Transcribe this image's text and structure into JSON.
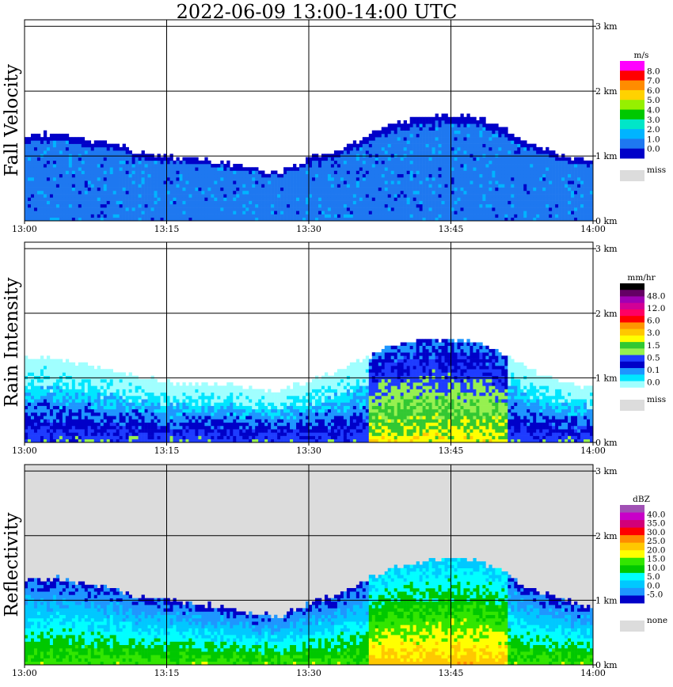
{
  "title": "2022-06-09   13:00-14:00 UTC",
  "colors": {
    "missing": "#dcdcdc",
    "fall_velocity": [
      "#0000c8",
      "#1e78f0",
      "#00b4ff",
      "#00e6c8",
      "#00c800",
      "#96f000",
      "#ffd200",
      "#ff8c00",
      "#ff0000",
      "#ff00ff"
    ],
    "rain_intensity": [
      "#ffffff",
      "#a0ffff",
      "#00e6ff",
      "#1e96ff",
      "#0000c8",
      "#1e3cff",
      "#96f050",
      "#32c832",
      "#ffff00",
      "#ffc800",
      "#ff9600",
      "#ff0000",
      "#ff0064",
      "#d20096",
      "#a000b4",
      "#640064",
      "#000000"
    ],
    "reflectivity": [
      "#0000c8",
      "#1e96ff",
      "#00c8ff",
      "#00ffff",
      "#00c800",
      "#32e600",
      "#ffff00",
      "#ffc800",
      "#ff8c00",
      "#ff0000",
      "#d20078",
      "#c800c8",
      "#a050b4"
    ]
  },
  "chart_data": [
    {
      "type": "heatmap",
      "ylabel": "Fall Velocity",
      "x_ticks": [
        "13:00",
        "13:15",
        "13:30",
        "13:45",
        "14:00"
      ],
      "y_ticks": [
        "0 km",
        "1 km",
        "2 km",
        "3 km"
      ],
      "xlim": [
        "13:00",
        "14:00"
      ],
      "ylim": [
        0,
        3.1
      ],
      "grid": true,
      "legend": {
        "unit": "m/s",
        "levels": [
          "0.0",
          "1.0",
          "2.0",
          "3.0",
          "4.0",
          "5.0",
          "6.0",
          "7.0",
          "8.0"
        ],
        "missing_label": "miss"
      },
      "cloud_top_km": [
        1.3,
        1.35,
        1.25,
        1.2,
        1.05,
        1.0,
        0.95,
        0.9,
        0.8,
        0.75,
        0.95,
        1.1,
        1.3,
        1.5,
        1.6,
        1.65,
        1.6,
        1.4,
        1.15,
        1.0,
        0.9
      ]
    },
    {
      "type": "heatmap",
      "ylabel": "Rain Intensity",
      "x_ticks": [
        "13:00",
        "13:15",
        "13:30",
        "13:45",
        "14:00"
      ],
      "y_ticks": [
        "0 km",
        "1 km",
        "2 km",
        "3 km"
      ],
      "xlim": [
        "13:00",
        "14:00"
      ],
      "ylim": [
        0,
        3.1
      ],
      "grid": true,
      "legend": {
        "unit": "mm/hr",
        "levels": [
          "0.0",
          "0.1",
          "0.5",
          "1.5",
          "3.0",
          "6.0",
          "12.0",
          "48.0"
        ],
        "missing_label": "miss"
      },
      "cloud_top_km": [
        1.3,
        1.3,
        1.2,
        1.1,
        1.0,
        0.95,
        0.9,
        0.9,
        0.85,
        0.8,
        0.95,
        1.1,
        1.3,
        1.5,
        1.6,
        1.6,
        1.55,
        1.35,
        1.1,
        0.95,
        0.85
      ]
    },
    {
      "type": "heatmap",
      "ylabel": "Reflectivity",
      "x_ticks": [
        "13:00",
        "13:15",
        "13:30",
        "13:45",
        "14:00"
      ],
      "y_ticks": [
        "0 km",
        "1 km",
        "2 km",
        "3 km"
      ],
      "xlim": [
        "13:00",
        "14:00"
      ],
      "ylim": [
        0,
        3.1
      ],
      "grid": true,
      "legend": {
        "unit": "dBZ",
        "levels": [
          "-5.0",
          "0.0",
          "5.0",
          "10.0",
          "15.0",
          "20.0",
          "25.0",
          "30.0",
          "35.0",
          "40.0"
        ],
        "missing_label": "none"
      },
      "cloud_top_km": [
        1.3,
        1.35,
        1.25,
        1.2,
        1.05,
        1.0,
        0.95,
        0.9,
        0.8,
        0.75,
        0.95,
        1.1,
        1.3,
        1.5,
        1.6,
        1.65,
        1.6,
        1.4,
        1.15,
        1.0,
        0.9
      ]
    }
  ]
}
